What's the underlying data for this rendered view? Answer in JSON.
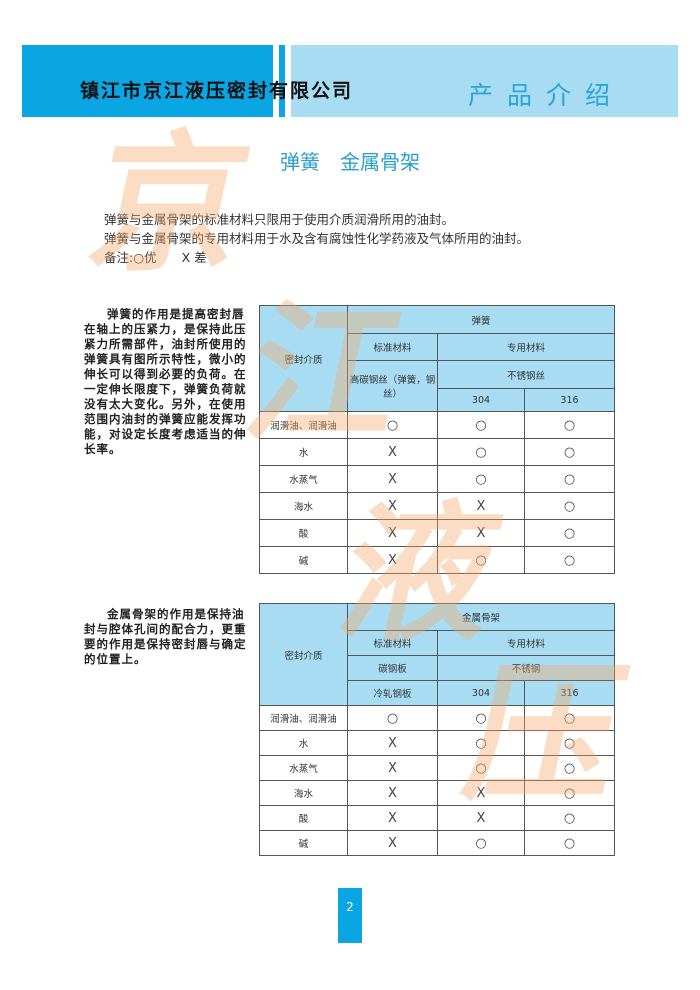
{
  "header": {
    "company": "镇江市京江液压密封有限公司",
    "title": "产品介绍",
    "colors": {
      "dark": "#0aa5e3",
      "light": "#a8dcf3"
    }
  },
  "section_title": "弹簧　金属骨架",
  "intro": [
    "弹簧与金属骨架的标准材料只限用于使用介质润滑所用的油封。",
    "弹簧与金属骨架的专用材料用于水及含有腐蚀性化学药液及气体所用的油封。",
    "备注:○优　　X 差"
  ],
  "spring": {
    "description": "弹簧的作用是提高密封唇在轴上的压紧力，是保持此压紧力所需部件，油封所使用的弹簧具有图所示特性，微小的伸长可以得到必要的负荷。在一定伸长限度下，弹簧负荷就没有太大变化。另外，在使用范围内油封的弹簧应能发挥功能，对设定长度考虑适当的伸长率。",
    "table": {
      "medium_header": "密封介质",
      "group": "弹簧",
      "standard": "标准材料",
      "special": "专用材料",
      "standard_material": "高碳钢丝（弹簧，钢丝）",
      "special_material": "不锈钢丝",
      "grade_a": "304",
      "grade_b": "316",
      "rows": [
        {
          "medium": "润滑油、润滑油",
          "std": "○",
          "a": "○",
          "b": "○"
        },
        {
          "medium": "水",
          "std": "X",
          "a": "○",
          "b": "○"
        },
        {
          "medium": "水蒸气",
          "std": "X",
          "a": "○",
          "b": "○"
        },
        {
          "medium": "海水",
          "std": "X",
          "a": "X",
          "b": "○"
        },
        {
          "medium": "酸",
          "std": "X",
          "a": "X",
          "b": "○"
        },
        {
          "medium": "碱",
          "std": "X",
          "a": "○",
          "b": "○"
        }
      ]
    }
  },
  "frame": {
    "description": "金属骨架的作用是保持油封与腔体孔间的配合力，更重要的作用是保持密封唇与确定的位置上。",
    "table": {
      "medium_header": "密封介质",
      "group": "金属骨架",
      "standard": "标准材料",
      "special": "专用材料",
      "standard_material": "碳钢板",
      "standard_material2": "冷轧钢板",
      "special_material": "不锈钢",
      "grade_a": "304",
      "grade_b": "316",
      "rows": [
        {
          "medium": "润滑油、润滑油",
          "std": "○",
          "a": "○",
          "b": "○"
        },
        {
          "medium": "水",
          "std": "X",
          "a": "○",
          "b": "○"
        },
        {
          "medium": "水蒸气",
          "std": "X",
          "a": "○",
          "b": "○"
        },
        {
          "medium": "海水",
          "std": "X",
          "a": "X",
          "b": "○"
        },
        {
          "medium": "酸",
          "std": "X",
          "a": "X",
          "b": "○"
        },
        {
          "medium": "碱",
          "std": "X",
          "a": "○",
          "b": "○"
        }
      ]
    }
  },
  "page_number": "2",
  "watermark": [
    "京",
    "江",
    "液",
    "压"
  ]
}
